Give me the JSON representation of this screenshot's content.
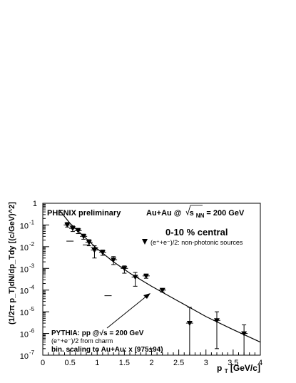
{
  "chart_data": {
    "type": "scatter",
    "xlabel": "p",
    "xlabel_sub": "T",
    "xlabel_unit": " [GeV/c]",
    "ylabel": "(1/2π p_T)dN/dp_Tdy [(c/GeV)^2]",
    "xlim": [
      0,
      4
    ],
    "ylim_log10": [
      -7,
      0
    ],
    "y_scale": "log",
    "x_ticks": [
      0,
      0.5,
      1,
      1.5,
      2,
      2.5,
      3,
      3.5,
      4
    ],
    "x_tick_labels": [
      "0",
      "0.5",
      "1",
      "1.5",
      "2",
      "2.5",
      "3",
      "3.5",
      "4"
    ],
    "y_ticks_exp": [
      -7,
      -6,
      -5,
      -4,
      -3,
      -2,
      -1,
      0
    ],
    "y_tick_base": "10",
    "y_tick_one": "1",
    "series": [
      {
        "name": "(e⁺+e⁻)/2: non-photonic sources",
        "marker": "triangle-down",
        "x": [
          0.45,
          0.55,
          0.65,
          0.75,
          0.85,
          0.95,
          1.1,
          1.3,
          1.5,
          1.7,
          1.9,
          2.2,
          2.7,
          3.2,
          3.7
        ],
        "y": [
          0.1,
          0.07,
          0.055,
          0.03,
          0.016,
          0.007,
          0.0055,
          0.0025,
          0.001,
          0.0004,
          0.00045,
          0.0001,
          3e-06,
          4e-06,
          1e-06
        ],
        "err_low": [
          0.08,
          0.05,
          0.04,
          0.022,
          0.011,
          0.003,
          0.004,
          0.0015,
          0.0006,
          0.00015,
          0.00035,
          8e-05,
          1e-07,
          2e-07,
          1e-07
        ],
        "err_high": [
          0.13,
          0.09,
          0.07,
          0.038,
          0.021,
          0.011,
          0.007,
          0.0035,
          0.0013,
          0.00065,
          0.00055,
          0.00012,
          1.6e-05,
          1e-05,
          2.5e-06
        ],
        "sys_marks": [
          [
            0.5,
            0.018
          ],
          [
            0.8,
            0.012
          ],
          [
            0.95,
            0.009
          ],
          [
            1.2,
            5.5e-05
          ]
        ]
      }
    ],
    "curve": {
      "name": "PYTHIA: pp @√s = 200 GeV",
      "x": [
        0.3,
        0.5,
        0.7,
        1.0,
        1.3,
        1.6,
        2.0,
        2.5,
        3.0,
        3.5,
        4.0
      ],
      "y": [
        0.5,
        0.12,
        0.04,
        0.008,
        0.002,
        0.0006,
        0.00015,
        3e-05,
        6e-06,
        1.5e-06,
        4e-07
      ]
    },
    "annotations": {
      "phenix": "PHENIX preliminary",
      "system_prefix": "Au+Au @",
      "system_s": "s",
      "system_sub": "NN",
      "system_suffix": " = 200 GeV",
      "centrality": "0-10 % central",
      "legend_entry": "(e⁺+e⁻)/2: non-photonic sources",
      "pythia_line1": "PYTHIA: pp @√s = 200 GeV",
      "pythia_line2": "(e⁺+e⁻)/2 from charm",
      "pythia_line3": "bin. scaling to Au+Au: x (975±94)"
    }
  }
}
